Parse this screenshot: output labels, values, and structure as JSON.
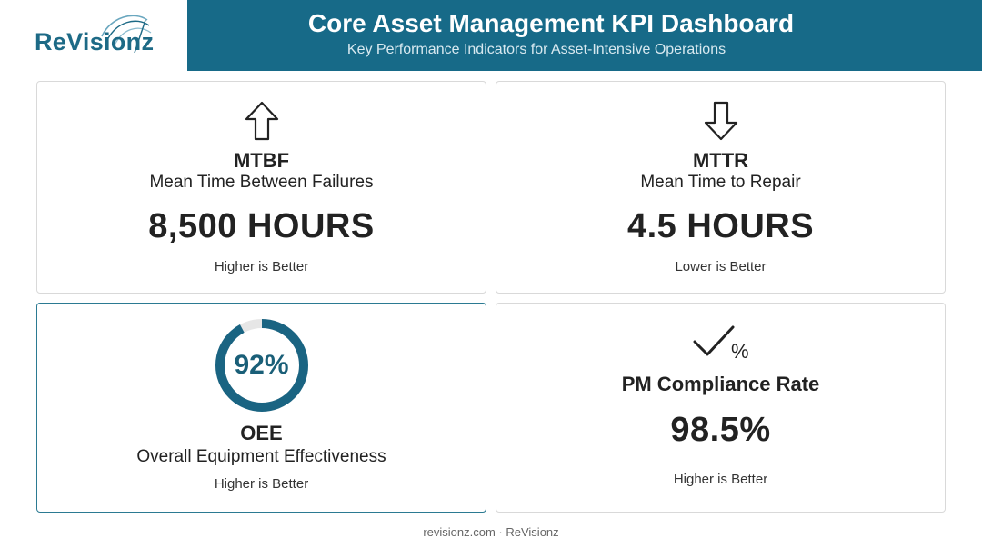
{
  "header": {
    "logo_text": "ReVisionz",
    "title": "Core Asset Management KPI Dashboard",
    "subtitle": "Key Performance Indicators for Asset-Intensive Operations"
  },
  "cards": {
    "mtbf": {
      "icon": "arrow-up-icon",
      "title": "MTBF",
      "subtitle": "Mean Time Between Failures",
      "value": "8,500 HOURS",
      "note": "Higher is Better"
    },
    "mttr": {
      "icon": "arrow-down-icon",
      "title": "MTTR",
      "subtitle": "Mean Time to Repair",
      "value": "4.5 HOURS",
      "note": "Lower is Better"
    },
    "oee": {
      "icon": "progress-ring-icon",
      "gauge_label": "92%",
      "gauge_fraction": 0.92,
      "title": "OEE",
      "subtitle": "Overall Equipment Effectiveness",
      "note": "Higher is Better"
    },
    "pm": {
      "icon": "checkmark-percent-icon",
      "title": "PM Compliance Rate",
      "value": "98.5%",
      "note": "Higher is Better"
    }
  },
  "colors": {
    "brand": "#176a88",
    "gauge_track": "#e6e6e6",
    "gauge_fill": "#1a6482"
  },
  "footer": {
    "text": "revisionz.com · ReVisionz"
  }
}
